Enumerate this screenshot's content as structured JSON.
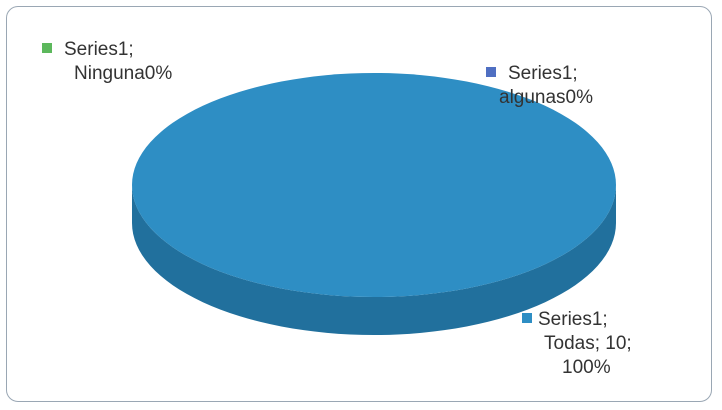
{
  "chart_data": {
    "type": "pie",
    "style": "3d",
    "categories": [
      "Ninguna",
      "algunas",
      "Todas"
    ],
    "series": [
      {
        "name": "Series1",
        "values": [
          0,
          0,
          10
        ]
      }
    ],
    "percentages": [
      "0%",
      "0%",
      "100%"
    ],
    "colors": {
      "Ninguna": "#5cb85c",
      "algunas": "#4f6fc2",
      "Todas": "#2e8ec4",
      "Todas_side": "#21709d"
    },
    "data_labels": [
      {
        "category": "Ninguna",
        "line1": "Series1;",
        "line2": "Ninguna0%"
      },
      {
        "category": "algunas",
        "line1": "Series1;",
        "line2": "algunas0%"
      },
      {
        "category": "Todas",
        "line1": "Series1;",
        "line2": "Todas; 10;",
        "line3": "100%"
      }
    ]
  }
}
